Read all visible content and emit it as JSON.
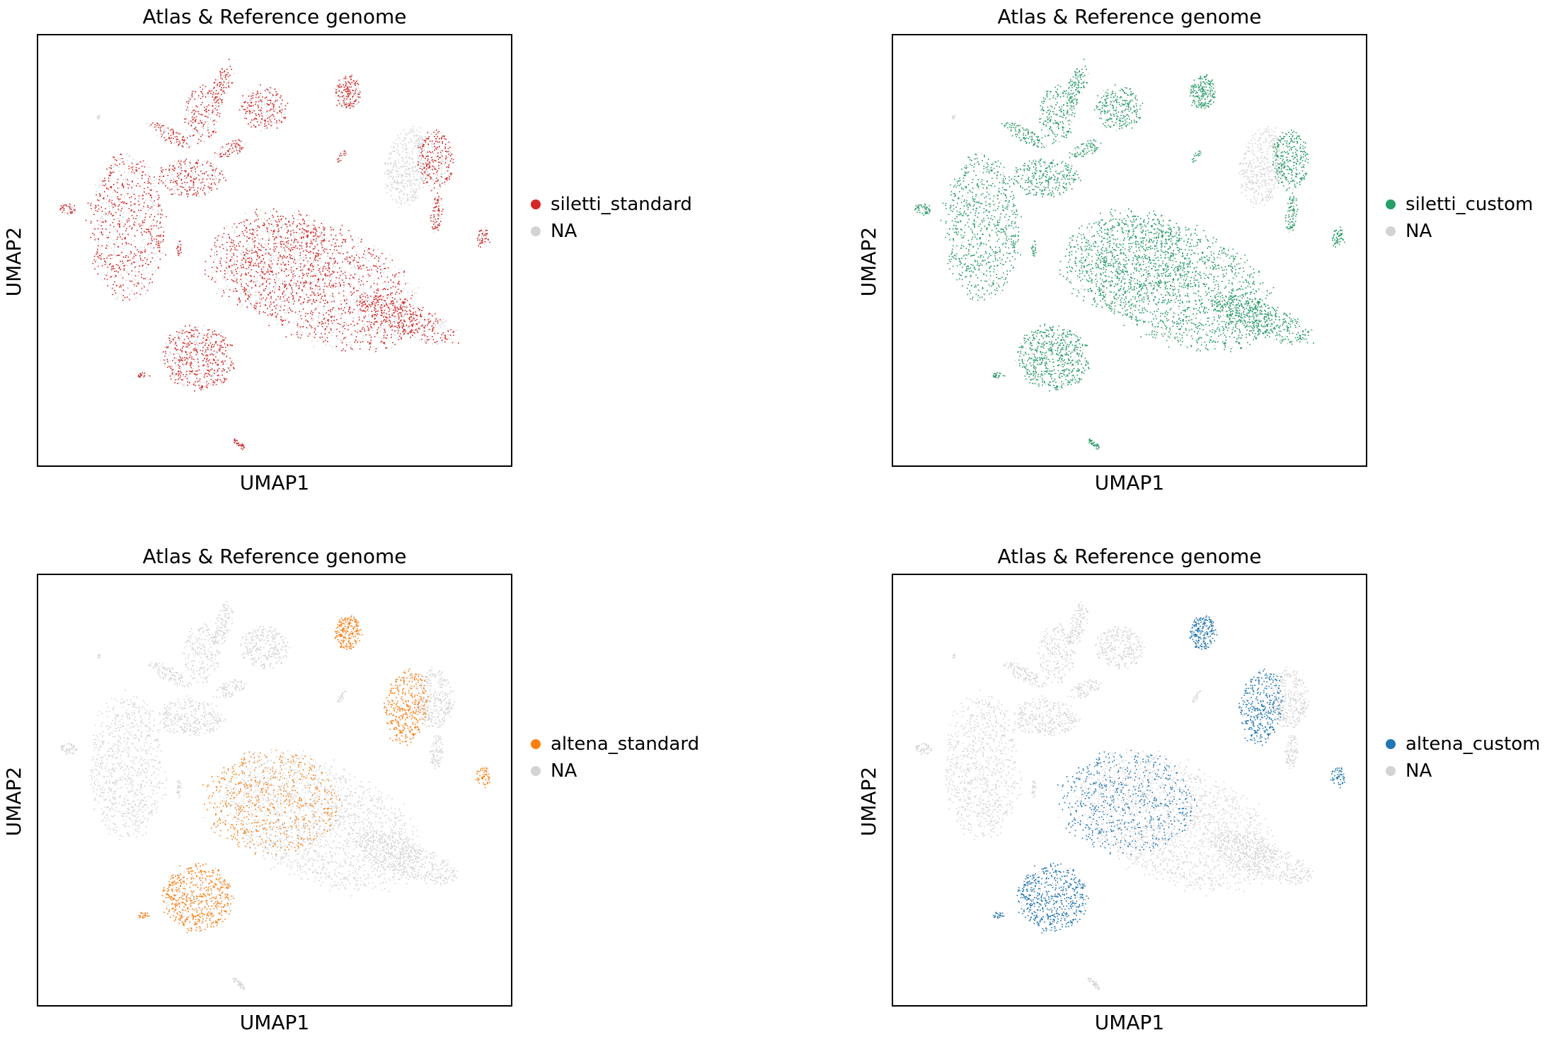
{
  "figure": {
    "na_color": "#d3d3d3"
  },
  "panels": [
    {
      "title": "Atlas & Reference genome",
      "xlabel": "UMAP1",
      "ylabel": "UMAP2",
      "legend": [
        "siletti_standard",
        "NA"
      ],
      "highlight_color": "#d62728"
    },
    {
      "title": "Atlas & Reference genome",
      "xlabel": "UMAP1",
      "ylabel": "UMAP2",
      "legend": [
        "siletti_custom",
        "NA"
      ],
      "highlight_color": "#279e68"
    },
    {
      "title": "Atlas & Reference genome",
      "xlabel": "UMAP1",
      "ylabel": "UMAP2",
      "legend": [
        "altena_standard",
        "NA"
      ],
      "highlight_color": "#ff7f0e"
    },
    {
      "title": "Atlas & Reference genome",
      "xlabel": "UMAP1",
      "ylabel": "UMAP2",
      "legend": [
        "altena_custom",
        "NA"
      ],
      "highlight_color": "#1f77b4"
    }
  ],
  "chart_data": [
    {
      "type": "scatter",
      "title": "Atlas & Reference genome",
      "xlabel": "UMAP1",
      "ylabel": "UMAP2",
      "categories": [
        "siletti_standard",
        "NA"
      ],
      "colors": [
        "#d62728",
        "#d3d3d3"
      ],
      "grid": false,
      "legend_position": "right"
    },
    {
      "type": "scatter",
      "title": "Atlas & Reference genome",
      "xlabel": "UMAP1",
      "ylabel": "UMAP2",
      "categories": [
        "siletti_custom",
        "NA"
      ],
      "colors": [
        "#279e68",
        "#d3d3d3"
      ],
      "grid": false,
      "legend_position": "right"
    },
    {
      "type": "scatter",
      "title": "Atlas & Reference genome",
      "xlabel": "UMAP1",
      "ylabel": "UMAP2",
      "categories": [
        "altena_standard",
        "NA"
      ],
      "colors": [
        "#ff7f0e",
        "#d3d3d3"
      ],
      "grid": false,
      "legend_position": "right"
    },
    {
      "type": "scatter",
      "title": "Atlas & Reference genome",
      "xlabel": "UMAP1",
      "ylabel": "UMAP2",
      "categories": [
        "altena_custom",
        "NA"
      ],
      "colors": [
        "#1f77b4",
        "#d3d3d3"
      ],
      "grid": false,
      "legend_position": "right"
    }
  ]
}
